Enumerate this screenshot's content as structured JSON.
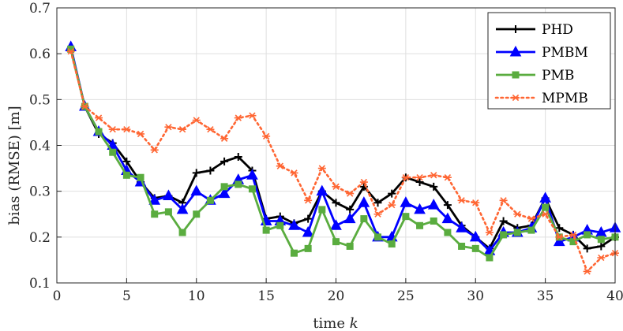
{
  "chart_data": {
    "type": "line",
    "title": "",
    "xlabel": "time k",
    "ylabel": "bias (RMSE) [m]",
    "xlim": [
      0,
      40
    ],
    "ylim": [
      0.1,
      0.7
    ],
    "xticks": [
      0,
      5,
      10,
      15,
      20,
      25,
      30,
      35,
      40
    ],
    "yticks": [
      0.1,
      0.2,
      0.3,
      0.4,
      0.5,
      0.6,
      0.7
    ],
    "grid": true,
    "legend_position": "top-right",
    "x": [
      1,
      2,
      3,
      4,
      5,
      6,
      7,
      8,
      9,
      10,
      11,
      12,
      13,
      14,
      15,
      16,
      17,
      18,
      19,
      20,
      21,
      22,
      23,
      24,
      25,
      26,
      27,
      28,
      29,
      30,
      31,
      32,
      33,
      34,
      35,
      36,
      37,
      38,
      39,
      40
    ],
    "series": [
      {
        "name": "PHD",
        "color": "#000000",
        "marker": "plus",
        "dash": "solid",
        "values": [
          0.61,
          0.485,
          0.425,
          0.405,
          0.365,
          0.32,
          0.285,
          0.29,
          0.275,
          0.34,
          0.345,
          0.365,
          0.375,
          0.345,
          0.24,
          0.245,
          0.23,
          0.24,
          0.3,
          0.275,
          0.26,
          0.31,
          0.275,
          0.295,
          0.33,
          0.32,
          0.31,
          0.27,
          0.225,
          0.2,
          0.175,
          0.235,
          0.22,
          0.225,
          0.285,
          0.22,
          0.205,
          0.175,
          0.18,
          0.2
        ]
      },
      {
        "name": "PMBM",
        "color": "#0000ff",
        "marker": "triangle",
        "dash": "solid",
        "values": [
          0.615,
          0.485,
          0.43,
          0.4,
          0.345,
          0.32,
          0.28,
          0.29,
          0.26,
          0.3,
          0.28,
          0.295,
          0.325,
          0.335,
          0.235,
          0.235,
          0.225,
          0.21,
          0.3,
          0.225,
          0.24,
          0.275,
          0.2,
          0.2,
          0.275,
          0.26,
          0.27,
          0.24,
          0.22,
          0.2,
          0.17,
          0.21,
          0.21,
          0.22,
          0.285,
          0.19,
          0.2,
          0.215,
          0.21,
          0.22
        ]
      },
      {
        "name": "PMB",
        "color": "#5aac3f",
        "marker": "square",
        "dash": "solid",
        "values": [
          0.61,
          0.485,
          0.43,
          0.385,
          0.335,
          0.33,
          0.25,
          0.255,
          0.21,
          0.25,
          0.28,
          0.31,
          0.315,
          0.305,
          0.215,
          0.225,
          0.165,
          0.175,
          0.26,
          0.19,
          0.18,
          0.24,
          0.2,
          0.185,
          0.245,
          0.225,
          0.235,
          0.21,
          0.18,
          0.175,
          0.155,
          0.205,
          0.21,
          0.215,
          0.265,
          0.2,
          0.19,
          0.205,
          0.195,
          0.2
        ]
      },
      {
        "name": "MPMB",
        "color": "#ff6633",
        "marker": "asterisk",
        "dash": "dotted",
        "values": [
          0.605,
          0.485,
          0.46,
          0.435,
          0.435,
          0.425,
          0.39,
          0.44,
          0.435,
          0.455,
          0.435,
          0.415,
          0.46,
          0.465,
          0.42,
          0.355,
          0.34,
          0.28,
          0.35,
          0.31,
          0.295,
          0.32,
          0.25,
          0.27,
          0.33,
          0.33,
          0.335,
          0.33,
          0.28,
          0.275,
          0.21,
          0.28,
          0.25,
          0.24,
          0.25,
          0.2,
          0.205,
          0.125,
          0.155,
          0.165
        ]
      }
    ]
  }
}
